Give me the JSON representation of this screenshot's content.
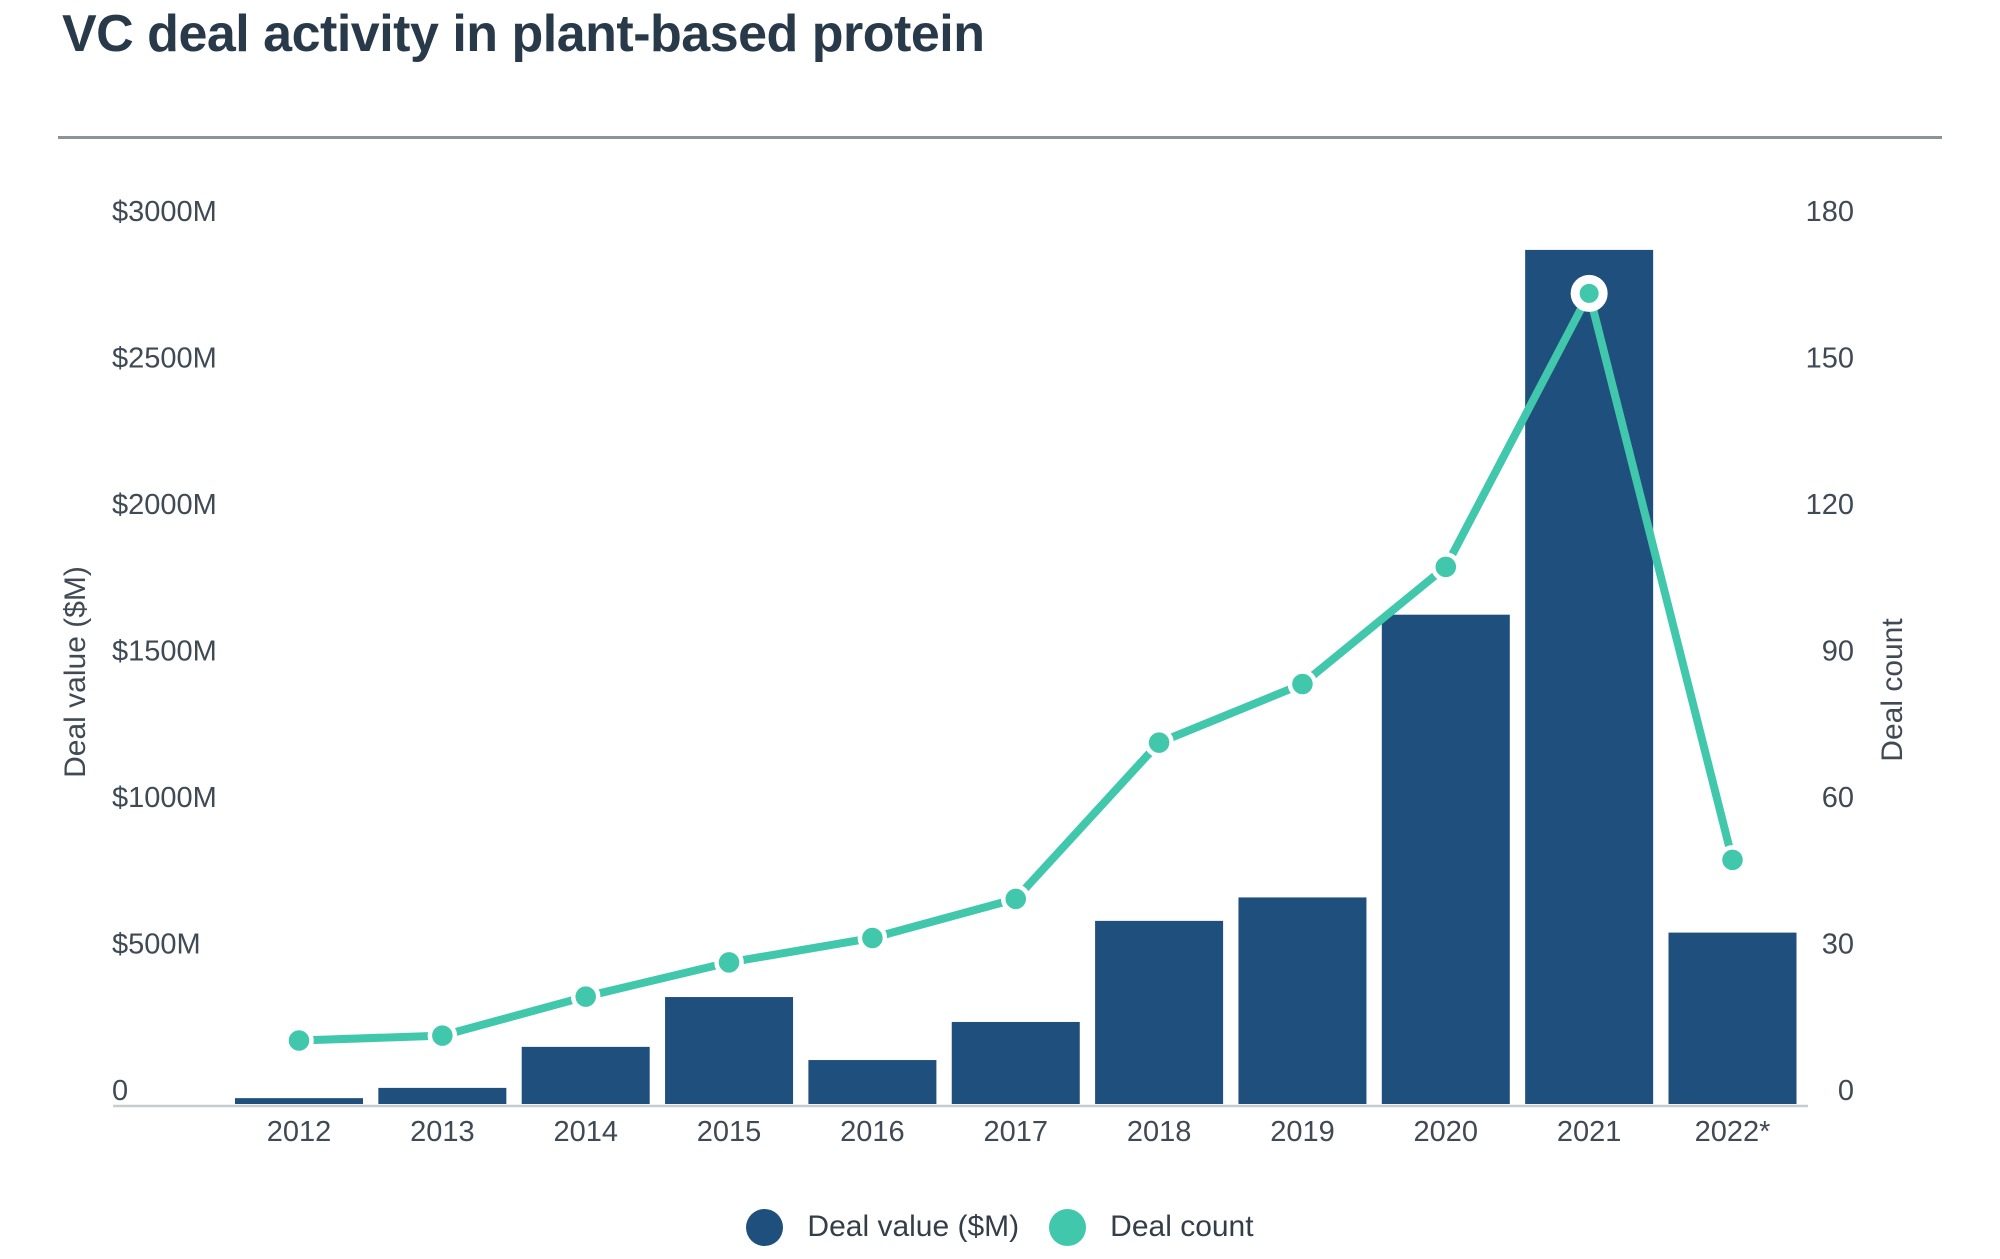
{
  "header": {
    "title": "VC deal activity in plant-based protein"
  },
  "colors": {
    "bar": "#1f4f7c",
    "line": "#41c7ac",
    "marker_ring": "#ffffff",
    "title_text": "#28394a",
    "axis_text": "#3f4a55",
    "legend_text": "#333e48",
    "baseline": "#c9ccce",
    "divider": "#8d9499",
    "background": "#ffffff"
  },
  "chart_data": {
    "type": "combo-bar-line",
    "title": "VC deal activity in plant-based protein",
    "categories": [
      "2012",
      "2013",
      "2014",
      "2015",
      "2016",
      "2017",
      "2018",
      "2019",
      "2020",
      "2021",
      "2022*"
    ],
    "series": [
      {
        "name": "Deal value ($M)",
        "type": "bar",
        "axis": "left",
        "values": [
          20,
          55,
          195,
          365,
          150,
          280,
          625,
          705,
          1670,
          2915,
          585
        ]
      },
      {
        "name": "Deal count",
        "type": "line",
        "axis": "right",
        "values": [
          13,
          14,
          22,
          29,
          34,
          42,
          74,
          86,
          110,
          166,
          50
        ]
      }
    ],
    "left_axis": {
      "label": "Deal value ($M)",
      "min": 0,
      "max": 3000,
      "tick_values": [
        3000,
        2500,
        2000,
        1500,
        1000,
        500,
        0
      ],
      "tick_labels": [
        "$3000M",
        "$2500M",
        "$2000M",
        "$1500M",
        "$1000M",
        "$500M",
        "0"
      ]
    },
    "right_axis": {
      "label": "Deal count",
      "min": 0,
      "max": 180,
      "tick_values": [
        180,
        150,
        120,
        90,
        60,
        30,
        0
      ],
      "tick_labels": [
        "180",
        "150",
        "120",
        "90",
        "60",
        "30",
        "0"
      ]
    },
    "highlight_category": "2021",
    "grid": false,
    "legend_position": "bottom"
  },
  "legend": {
    "items": [
      {
        "label": "Deal value ($M)",
        "color": "#1f4f7c"
      },
      {
        "label": "Deal count",
        "color": "#41c7ac"
      }
    ]
  }
}
